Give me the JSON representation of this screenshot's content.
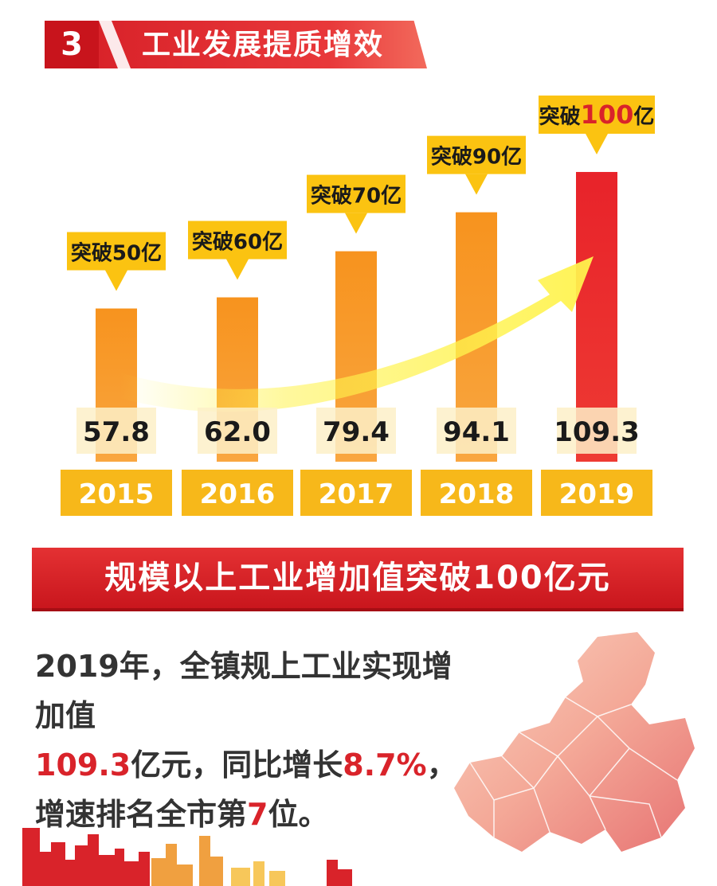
{
  "section": {
    "number": "3",
    "title": "工业发展提质增效"
  },
  "colors": {
    "red": "#d9232a",
    "bar_orange": "#f7931e",
    "bar_red": "#e8232a",
    "label_yellow": "#fbc311",
    "year_box": "#f7b81a",
    "arrow_yellow": "#fff34d"
  },
  "chart_data": {
    "type": "bar",
    "categories": [
      "2015",
      "2016",
      "2017",
      "2018",
      "2019"
    ],
    "values": [
      57.8,
      62.0,
      79.4,
      94.1,
      109.3
    ],
    "value_labels": [
      "57.8",
      "62.0",
      "79.4",
      "94.1",
      "109.3"
    ],
    "milestones": [
      {
        "prefix": "突破",
        "amount": "50",
        "unit": "亿"
      },
      {
        "prefix": "突破",
        "amount": "60",
        "unit": "亿"
      },
      {
        "prefix": "突破",
        "amount": "70",
        "unit": "亿"
      },
      {
        "prefix": "突破",
        "amount": "90",
        "unit": "亿"
      },
      {
        "prefix": "突破",
        "amount": "100",
        "unit": "亿"
      }
    ],
    "highlight_index": 4,
    "title": "",
    "xlabel": "",
    "ylabel": ""
  },
  "banner": {
    "text": "规模以上工业增加值突破100亿元"
  },
  "summary": {
    "line1": "2019年，全镇规上工业实现增加值",
    "value": "109.3",
    "line2_mid": "亿元，同比增长",
    "growth": "8.7%",
    "line2_end": "，",
    "line3_start": "增速排名全市第",
    "rank": "7",
    "line3_end": "位。"
  },
  "decor": {
    "map": "city-district-map",
    "skyline": "city-skyline-silhouette"
  }
}
